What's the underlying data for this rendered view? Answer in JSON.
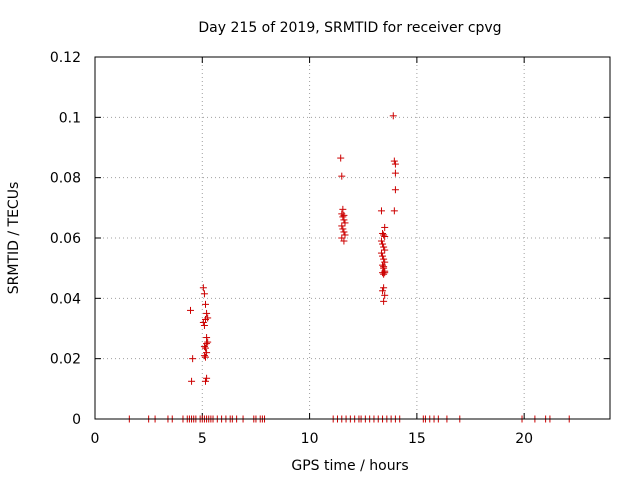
{
  "chart_data": {
    "type": "scatter",
    "title": "Day 215 of 2019, SRMTID for receiver cpvg",
    "xlabel": "GPS time / hours",
    "ylabel": "SRMTID / TECUs",
    "xlim": [
      0,
      24
    ],
    "ylim": [
      0,
      0.12
    ],
    "xticks": [
      0,
      5,
      10,
      15,
      20
    ],
    "xtick_labels": [
      "0",
      "5",
      "10",
      "15",
      "20"
    ],
    "yticks": [
      0,
      0.02,
      0.04,
      0.06,
      0.08,
      0.1,
      0.12
    ],
    "ytick_labels": [
      "0",
      "0.02",
      "0.04",
      "0.06",
      "0.08",
      "0.1",
      "0.12"
    ],
    "grid": true,
    "marker": "+",
    "series": [
      {
        "name": "SRMTID",
        "color": "#cc0000",
        "x": [
          1.6,
          2.5,
          2.8,
          3.4,
          3.6,
          4.1,
          4.3,
          4.4,
          4.5,
          4.6,
          4.7,
          4.9,
          5.0,
          5.1,
          5.2,
          5.3,
          5.4,
          5.5,
          5.7,
          5.9,
          6.1,
          6.3,
          6.4,
          6.6,
          6.9,
          7.4,
          7.5,
          7.7,
          7.8,
          7.9,
          11.1,
          11.3,
          11.5,
          11.7,
          11.9,
          12.1,
          12.3,
          12.4,
          12.6,
          12.8,
          13.0,
          13.2,
          13.4,
          13.6,
          13.8,
          14.0,
          14.2,
          15.3,
          15.4,
          15.6,
          15.8,
          16.0,
          16.4,
          17.0,
          19.9,
          20.5,
          21.0,
          21.2,
          22.1,
          4.45,
          4.5,
          4.55,
          5.05,
          5.1,
          5.15,
          5.2,
          5.25,
          5.05,
          5.1,
          5.15,
          5.2,
          5.25,
          5.1,
          5.15,
          5.2,
          5.1,
          5.15,
          5.2,
          5.15,
          5.2,
          11.45,
          11.5,
          11.55,
          11.6,
          11.5,
          11.55,
          11.6,
          11.65,
          11.5,
          11.55,
          11.6,
          11.65,
          11.5,
          11.6,
          13.35,
          13.4,
          13.45,
          13.5,
          13.35,
          13.4,
          13.45,
          13.5,
          13.35,
          13.4,
          13.45,
          13.5,
          13.4,
          13.45,
          13.5,
          13.4,
          13.45,
          13.5,
          13.45,
          13.4,
          13.5,
          13.45,
          13.5,
          13.45,
          13.9,
          13.95,
          14.0,
          14.0,
          14.0,
          13.95
        ],
        "y": [
          0,
          0,
          0,
          0,
          0,
          0,
          0,
          0,
          0,
          0,
          0,
          0,
          0,
          0,
          0,
          0,
          0,
          0,
          0,
          0,
          0,
          0,
          0,
          0,
          0,
          0,
          0,
          0,
          0,
          0,
          0,
          0,
          0,
          0,
          0,
          0,
          0,
          0,
          0,
          0,
          0,
          0,
          0,
          0,
          0,
          0,
          0,
          0,
          0,
          0,
          0,
          0,
          0,
          0,
          0,
          0,
          0,
          0,
          0,
          0.036,
          0.0125,
          0.02,
          0.0435,
          0.0415,
          0.038,
          0.035,
          0.0335,
          0.032,
          0.031,
          0.033,
          0.027,
          0.0255,
          0.024,
          0.0235,
          0.022,
          0.021,
          0.0205,
          0.025,
          0.0125,
          0.0135,
          0.0865,
          0.0805,
          0.0695,
          0.0675,
          0.068,
          0.067,
          0.066,
          0.065,
          0.064,
          0.063,
          0.062,
          0.061,
          0.06,
          0.059,
          0.069,
          0.0615,
          0.061,
          0.0605,
          0.059,
          0.058,
          0.057,
          0.056,
          0.055,
          0.054,
          0.053,
          0.052,
          0.051,
          0.05,
          0.049,
          0.0485,
          0.048,
          0.0485,
          0.0435,
          0.0425,
          0.041,
          0.039,
          0.0635,
          0.0505,
          0.1005,
          0.0855,
          0.0845,
          0.0815,
          0.076,
          0.069
        ]
      }
    ]
  },
  "colors": {
    "series": "#cc0000",
    "grid": "#a0a0a0",
    "axis": "#000000"
  }
}
